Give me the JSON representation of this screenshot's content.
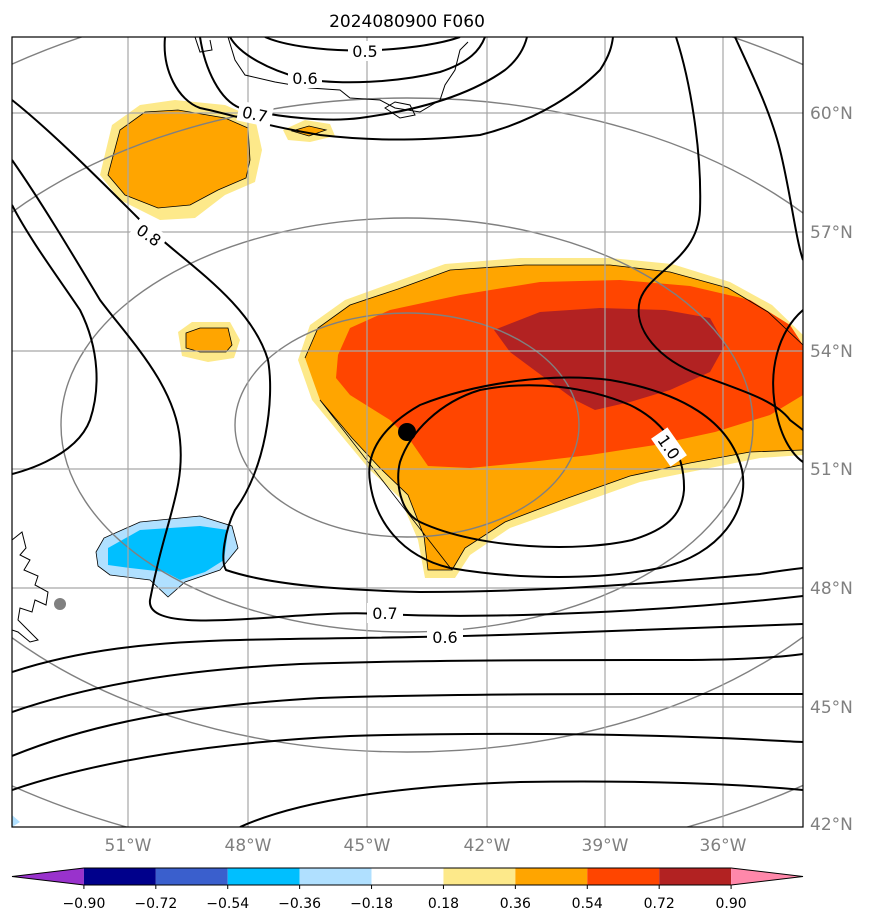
{
  "title": "2024080900 F060",
  "colors": {
    "grid": "#a6a6a6",
    "lat_ring": "#808080",
    "contour": "#000000",
    "coast": "#000000",
    "fill_yellow": "#fde98a",
    "fill_orange": "#ffa500",
    "fill_red": "#ff4500",
    "fill_darkred": "#b22222",
    "fill_blue": "#00bfff",
    "fill_lightblue": "#b0e0ff",
    "station_marker": "#000000",
    "gray_marker": "#808080"
  },
  "axes": {
    "longitude_labels": [
      "51°W",
      "48°W",
      "45°W",
      "42°W",
      "39°W",
      "36°W"
    ],
    "latitude_labels": [
      "60°N",
      "57°N",
      "54°N",
      "51°N",
      "48°N",
      "45°N",
      "42°N"
    ]
  },
  "contour_labels": [
    "0.5",
    "0.6",
    "0.7",
    "0.8",
    "1.0",
    "0.7",
    "0.6"
  ],
  "colorbar": {
    "labels": [
      "−0.90",
      "−0.72",
      "−0.54",
      "−0.36",
      "−0.18",
      "0.18",
      "0.36",
      "0.54",
      "0.72",
      "0.90"
    ],
    "colors": [
      "#9932cc",
      "#00008b",
      "#3a5fcd",
      "#00bfff",
      "#b0e0ff",
      "#ffffff",
      "#fde98a",
      "#ffa500",
      "#ff4500",
      "#b22222",
      "#ff88aa"
    ]
  },
  "markers": {
    "station": {
      "lon": -43.9,
      "lat": 51.9
    },
    "gray_point": {
      "lon": -52.7,
      "lat": 47.6
    }
  }
}
